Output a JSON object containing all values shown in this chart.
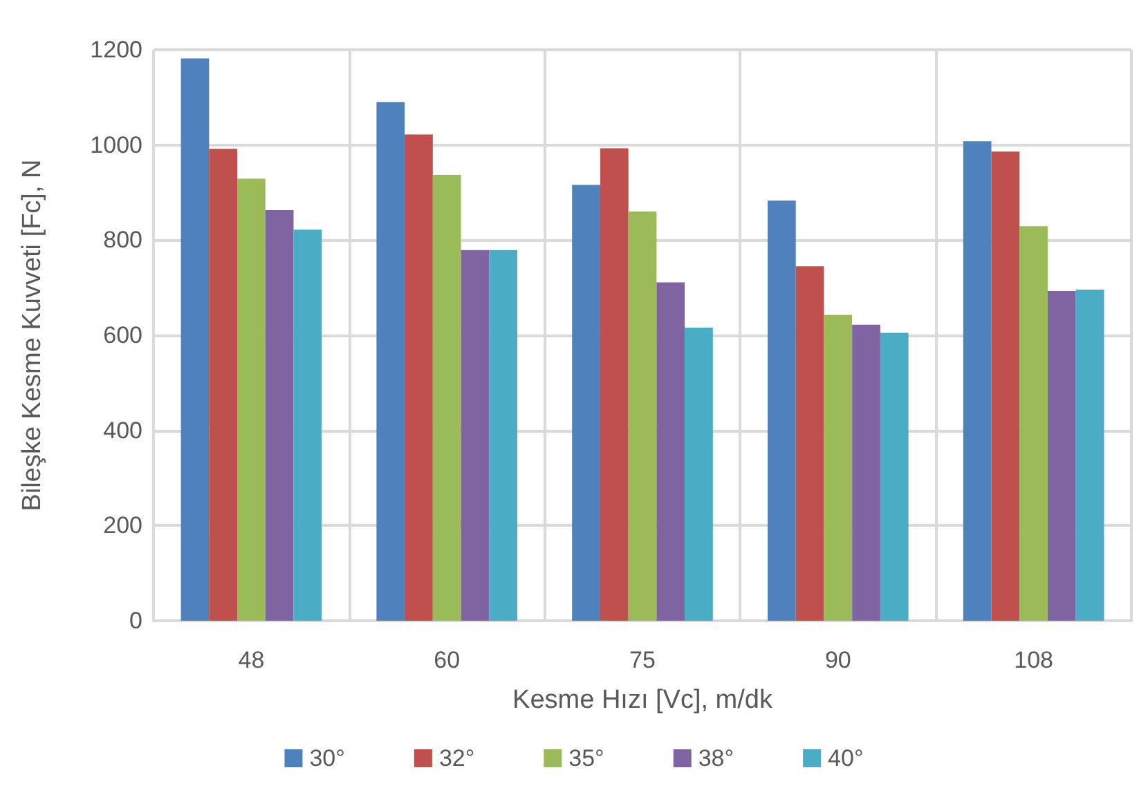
{
  "chart_data": {
    "type": "bar",
    "xlabel": "Kesme Hızı [Vc], m/dk",
    "ylabel": "Bileşke Kesme Kuvveti [Fc], N",
    "categories": [
      "48",
      "60",
      "75",
      "90",
      "108"
    ],
    "series": [
      {
        "name": "30°",
        "color": "#4f81bd",
        "values": [
          1182,
          1090,
          916,
          883,
          1008
        ]
      },
      {
        "name": "32°",
        "color": "#c0504d",
        "values": [
          992,
          1022,
          993,
          745,
          986
        ]
      },
      {
        "name": "35°",
        "color": "#9bbb59",
        "values": [
          929,
          937,
          860,
          643,
          829
        ]
      },
      {
        "name": "38°",
        "color": "#8064a2",
        "values": [
          863,
          779,
          711,
          622,
          693
        ]
      },
      {
        "name": "40°",
        "color": "#4bacc6",
        "values": [
          822,
          779,
          616,
          605,
          696
        ]
      }
    ],
    "ylim": [
      0,
      1200
    ],
    "yticks": [
      0,
      200,
      400,
      600,
      800,
      1000,
      1200
    ],
    "grid": true,
    "legend": "bottom"
  }
}
